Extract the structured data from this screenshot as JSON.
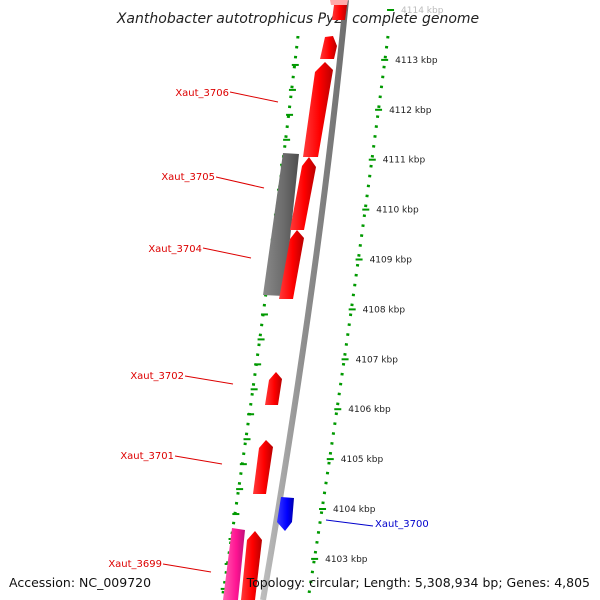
{
  "title": "Xanthobacter autotrophicus Py2, complete genome",
  "scale_labels": [
    {
      "kbp": 4114,
      "text": "4114 kbp",
      "faint": true
    },
    {
      "kbp": 4113,
      "text": "4113 kbp"
    },
    {
      "kbp": 4112,
      "text": "4112 kbp"
    },
    {
      "kbp": 4111,
      "text": "4111 kbp"
    },
    {
      "kbp": 4110,
      "text": "4110 kbp"
    },
    {
      "kbp": 4109,
      "text": "4109 kbp"
    },
    {
      "kbp": 4108,
      "text": "4108 kbp"
    },
    {
      "kbp": 4107,
      "text": "4107 kbp"
    },
    {
      "kbp": 4106,
      "text": "4106 kbp"
    },
    {
      "kbp": 4105,
      "text": "4105 kbp"
    },
    {
      "kbp": 4104,
      "text": "4104 kbp"
    },
    {
      "kbp": 4103,
      "text": "4103 kbp"
    }
  ],
  "gene_labels": [
    {
      "name": "Xaut_3706",
      "color": "#dd0000"
    },
    {
      "name": "Xaut_3705",
      "color": "#dd0000"
    },
    {
      "name": "Xaut_3704",
      "color": "#dd0000"
    },
    {
      "name": "Xaut_3702",
      "color": "#dd0000"
    },
    {
      "name": "Xaut_3701",
      "color": "#dd0000"
    },
    {
      "name": "Xaut_3700",
      "color": "#0000cc"
    },
    {
      "name": "Xaut_3699",
      "color": "#dd0000"
    }
  ],
  "colors": {
    "forward_gene": "#ff0000",
    "reverse_gene": "#0000ff",
    "pseudo_gene": "#666666",
    "rna_gene": "#ff1493",
    "backbone": "#999999",
    "tick_green": "#009900"
  },
  "footer": {
    "accession": "Accession: NC_009720",
    "stats": "Topology: circular; Length: 5,308,934 bp; Genes: 4,805"
  }
}
